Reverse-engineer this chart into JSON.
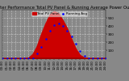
{
  "title": "Solar PV/Inverter Performance Total PV Panel & Running Average Power Output",
  "title_fontsize": 3.8,
  "bg_color": "#888888",
  "plot_bg_color": "#888888",
  "grid_color": "white",
  "x_hours": [
    0,
    1,
    2,
    3,
    4,
    5,
    6,
    7,
    8,
    9,
    10,
    11,
    12,
    13,
    14,
    15,
    16,
    17,
    18,
    19,
    20,
    21,
    22,
    23,
    24
  ],
  "pv_power": [
    0,
    0,
    0,
    0,
    0,
    0,
    5,
    50,
    150,
    300,
    430,
    540,
    580,
    555,
    470,
    370,
    240,
    120,
    40,
    8,
    0,
    0,
    0,
    0,
    0
  ],
  "avg_power": [
    0,
    0,
    0,
    0,
    0,
    0,
    0,
    0,
    60,
    140,
    240,
    340,
    410,
    430,
    400,
    340,
    270,
    180,
    90,
    30,
    5,
    0,
    0,
    0,
    0
  ],
  "pv_color": "#cc0000",
  "avg_color": "#0000ff",
  "ylim": [
    0,
    600
  ],
  "xlim": [
    0,
    24
  ],
  "legend_pv": "Total PV Panel",
  "legend_avg": "Running Avg",
  "yticks": [
    100,
    200,
    300,
    400,
    500
  ],
  "xtick_labels": [
    "00:00",
    "01:00",
    "02:00",
    "03:00",
    "04:00",
    "05:00",
    "06:00",
    "07:00",
    "08:00",
    "09:00",
    "10:00",
    "11:00",
    "12:00",
    "13:00",
    "14:00",
    "15:00",
    "16:00",
    "17:00",
    "18:00",
    "19:00",
    "20:00",
    "21:00",
    "22:00",
    "23:00",
    "24:00"
  ],
  "tick_fontsize": 3.0,
  "legend_fontsize": 3.0
}
